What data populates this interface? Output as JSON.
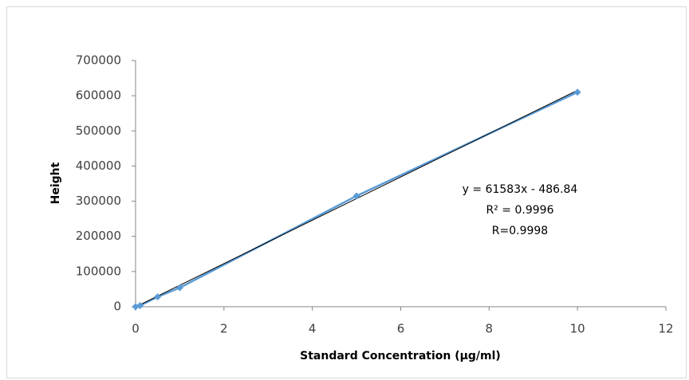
{
  "chart_data": {
    "type": "scatter",
    "x_label": "Standard Concentration  (µg/ml)",
    "y_label": "Height",
    "series": [
      {
        "color": "#5b9bd5",
        "x": [
          0,
          0.1,
          0.5,
          1,
          5,
          10
        ],
        "values": [
          0,
          3000,
          28000,
          54000,
          315000,
          610000
        ]
      }
    ],
    "trendline": {
      "color": "#000000",
      "x": [
        0,
        10
      ],
      "values": [
        -487,
        615343
      ]
    },
    "annotations": [
      "y = 61583x - 486.84",
      "R² = 0.9996",
      "R=0.9998"
    ],
    "xlim": [
      0,
      12
    ],
    "xticks": [
      0,
      2,
      4,
      6,
      8,
      10,
      12
    ],
    "ylim": [
      0,
      700000
    ],
    "yticks": [
      0,
      100000,
      200000,
      300000,
      400000,
      500000,
      600000,
      700000
    ],
    "grid": false
  }
}
